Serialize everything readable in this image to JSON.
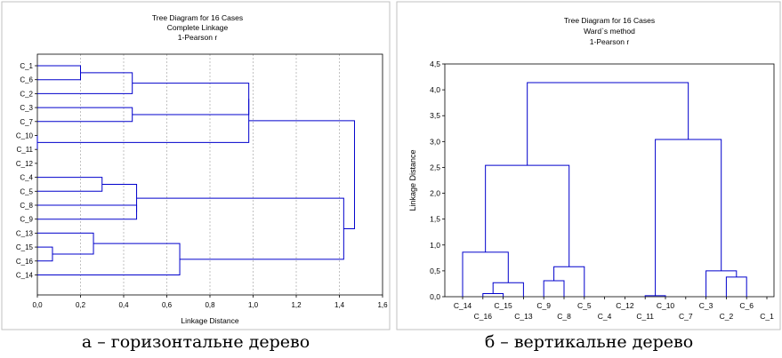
{
  "chart_data": [
    {
      "type": "dendrogram",
      "orientation": "horizontal",
      "title": "Tree Diagram for 16 Cases",
      "subtitle": "Complete Linkage",
      "subtitle2": "1-Pearson r",
      "xlabel": "Linkage Distance",
      "ylabel": "",
      "xlim": [
        0,
        1.6
      ],
      "x_ticks": [
        "0,0",
        "0,2",
        "0,4",
        "0,6",
        "0,8",
        "1,0",
        "1,2",
        "1,4",
        "1,6"
      ],
      "grid": true,
      "leaves": [
        "C_1",
        "C_6",
        "C_2",
        "C_3",
        "C_7",
        "C_10",
        "C_11",
        "C_12",
        "C_4",
        "C_5",
        "C_8",
        "C_9",
        "C_13",
        "C_15",
        "C_16",
        "C_14"
      ],
      "merges": [
        {
          "a": "C_1",
          "b": "C_6",
          "height": 0.2
        },
        {
          "a": "(C_1,C_6)",
          "b": "C_2",
          "height": 0.44
        },
        {
          "a": "(C_1,C_6,C_2)",
          "b": "C_3",
          "height": 0.44
        },
        {
          "a": "C_10",
          "b": "C_11",
          "height": 0.0
        },
        {
          "a": "C_1..C_3",
          "b": "C_7",
          "height": 0.98
        },
        {
          "a": "C_4",
          "b": "C_5",
          "height": 0.3
        },
        {
          "a": "(C_4,C_5)",
          "b": "C_8",
          "height": 0.46
        },
        {
          "a": "C_15",
          "b": "C_16",
          "height": 0.07
        },
        {
          "a": "C_13",
          "b": "(C_15,C_16)",
          "height": 0.26
        },
        {
          "a": "(C_13,C_15,C_16)",
          "b": "C_14",
          "height": 0.66
        },
        {
          "a": "C_4..C_8",
          "b": "C_13..C_14",
          "height": 1.42
        },
        {
          "a": "C_1..C_7",
          "b": "C_4..C_14",
          "height": 1.47
        }
      ]
    },
    {
      "type": "dendrogram",
      "orientation": "vertical",
      "title": "Tree Diagram for 16 Cases",
      "subtitle": "Ward`s method",
      "subtitle2": "1-Pearson r",
      "xlabel": "",
      "ylabel": "Linkage Distance",
      "ylim": [
        0,
        4.5
      ],
      "y_ticks": [
        "0,0",
        "0,5",
        "1,0",
        "1,5",
        "2,0",
        "2,5",
        "3,0",
        "3,5",
        "4,0",
        "4,5"
      ],
      "grid": false,
      "leaves": [
        "C_14",
        "C_16",
        "C_15",
        "C_13",
        "C_9",
        "C_8",
        "C_5",
        "C_4",
        "C_12",
        "C_11",
        "C_10",
        "C_7",
        "C_3",
        "C_2",
        "C_6",
        "C_1"
      ],
      "x_labels_top": [
        "C_14",
        "C_15",
        "C_9",
        "C_5",
        "C_12",
        "C_10",
        "C_3",
        "C_6"
      ],
      "x_labels_bottom": [
        "C_16",
        "C_13",
        "C_8",
        "C_4",
        "C_11",
        "C_7",
        "C_2",
        "C_1"
      ],
      "merges": [
        {
          "a": "C_16",
          "b": "C_15",
          "height": 0.06
        },
        {
          "a": "(C_16,C_15)",
          "b": "C_13",
          "height": 0.27
        },
        {
          "a": "C_14",
          "b": "(C_16,C_15,C_13)",
          "height": 0.86
        },
        {
          "a": "C_9",
          "b": "C_8",
          "height": 0.31
        },
        {
          "a": "(C_9,C_8)",
          "b": "C_5",
          "height": 0.58
        },
        {
          "a": "C_14..C_13",
          "b": "C_9..C_5",
          "height": 2.54
        },
        {
          "a": "C_11",
          "b": "C_10",
          "height": 0.02
        },
        {
          "a": "C_2",
          "b": "C_6",
          "height": 0.38
        },
        {
          "a": "C_3",
          "b": "(C_2,C_6)",
          "height": 0.5
        },
        {
          "a": "(C_11,C_10)",
          "b": "C_3..C_6",
          "height": 3.04
        },
        {
          "a": "C_14..C_5",
          "b": "C_11..C_6",
          "height": 4.14
        }
      ]
    }
  ],
  "captions": {
    "a": "а – горизонтальне дерево",
    "b": "б – вертикальне дерево"
  }
}
